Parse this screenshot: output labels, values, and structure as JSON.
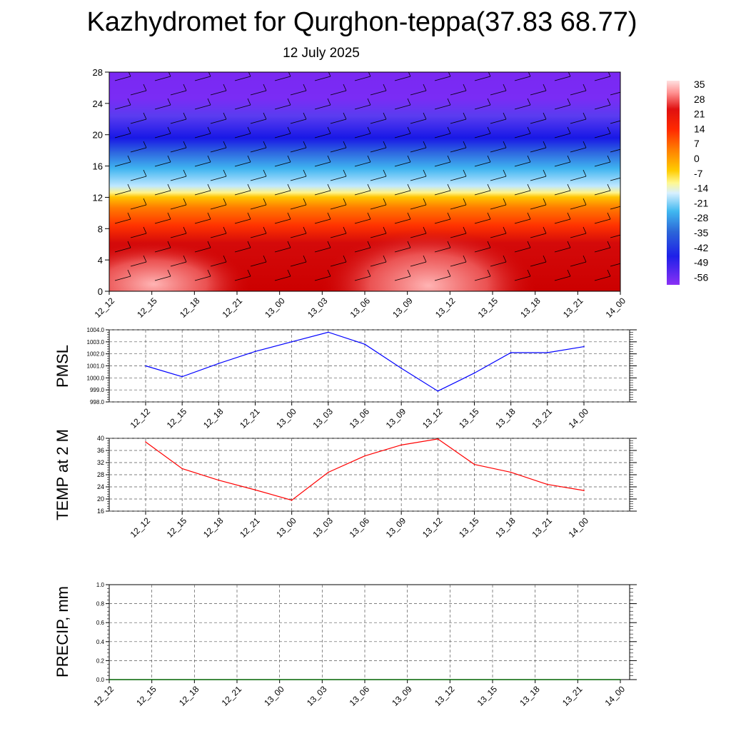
{
  "title": "Kazhydromet for Qurghon-teppa(37.83 68.77)",
  "subtitle": "12 July 2025",
  "time_labels": [
    "12_12",
    "12_15",
    "12_18",
    "12_21",
    "13_00",
    "13_03",
    "13_06",
    "13_09",
    "13_12",
    "13_15",
    "13_18",
    "13_21",
    "14_00"
  ],
  "colorbar": {
    "labels": [
      "35",
      "28",
      "21",
      "14",
      "7",
      "0",
      "-7",
      "-14",
      "-21",
      "-28",
      "-35",
      "-42",
      "-49",
      "-56"
    ]
  },
  "chart_data": [
    {
      "type": "heatmap",
      "name": "cross-section",
      "xlabel": "",
      "ylabel": "",
      "ylim": [
        0,
        28
      ],
      "yticks": [
        0,
        4,
        8,
        12,
        16,
        20,
        24,
        28
      ],
      "categories": [
        "12_12",
        "12_15",
        "12_18",
        "12_21",
        "13_00",
        "13_03",
        "13_06",
        "13_09",
        "13_12",
        "13_15",
        "13_18",
        "13_21",
        "14_00"
      ],
      "values_by_level": [
        {
          "level": 0,
          "temps": [
            35,
            33,
            31,
            27,
            27,
            26,
            30,
            33,
            34,
            32,
            29,
            27,
            27
          ]
        },
        {
          "level": 4,
          "temps": [
            28,
            28,
            27,
            27,
            26,
            26,
            27,
            28,
            29,
            28,
            27,
            26,
            26
          ]
        },
        {
          "level": 8,
          "temps": [
            21,
            21,
            21,
            21,
            21,
            21,
            21,
            21,
            21,
            21,
            21,
            21,
            21
          ]
        },
        {
          "level": 12,
          "temps": [
            0,
            0,
            0,
            0,
            0,
            0,
            0,
            0,
            0,
            0,
            0,
            0,
            0
          ]
        },
        {
          "level": 16,
          "temps": [
            -21,
            -21,
            -21,
            -21,
            -21,
            -21,
            -21,
            -21,
            -21,
            -21,
            -21,
            -21,
            -21
          ]
        },
        {
          "level": 20,
          "temps": [
            -42,
            -42,
            -42,
            -42,
            -42,
            -42,
            -42,
            -42,
            -42,
            -42,
            -42,
            -42,
            -42
          ]
        },
        {
          "level": 24,
          "temps": [
            -56,
            -56,
            -56,
            -56,
            -56,
            -56,
            -56,
            -56,
            -56,
            -56,
            -56,
            -56,
            -56
          ]
        },
        {
          "level": 28,
          "temps": [
            -60,
            -60,
            -60,
            -60,
            -60,
            -60,
            -60,
            -60,
            -60,
            -60,
            -60,
            -60,
            -60
          ]
        }
      ]
    },
    {
      "type": "line",
      "name": "pmsl",
      "ylabel": "PMSL",
      "ylim": [
        998.0,
        1004.0
      ],
      "yticks": [
        "998.0",
        "999.0",
        "1000.0",
        "1001.0",
        "1002.0",
        "1003.0",
        "1004.0"
      ],
      "color": "#0000ff",
      "categories": [
        "12_12",
        "12_15",
        "12_18",
        "12_21",
        "13_00",
        "13_03",
        "13_06",
        "13_09",
        "13_12",
        "13_15",
        "13_18",
        "13_21",
        "14_00"
      ],
      "values": [
        1001.0,
        1000.1,
        1001.2,
        1002.2,
        1003.0,
        1003.8,
        1002.8,
        1000.8,
        998.9,
        1000.4,
        1002.1,
        1002.1,
        1002.6
      ]
    },
    {
      "type": "line",
      "name": "temp2m",
      "ylabel": "TEMP at 2 M",
      "ylim": [
        16,
        40
      ],
      "yticks": [
        "16",
        "20",
        "24",
        "28",
        "32",
        "36",
        "40"
      ],
      "color": "#ff0000",
      "categories": [
        "12_12",
        "12_15",
        "12_18",
        "12_21",
        "13_00",
        "13_03",
        "13_06",
        "13_09",
        "13_12",
        "13_15",
        "13_18",
        "13_21",
        "14_00"
      ],
      "values": [
        38.8,
        30.0,
        26.2,
        23.0,
        19.6,
        28.8,
        34.2,
        37.8,
        39.8,
        31.4,
        28.8,
        24.8,
        22.8
      ]
    },
    {
      "type": "line",
      "name": "precip",
      "ylabel": "PRECIP, mm",
      "ylim": [
        0.0,
        1.0
      ],
      "yticks": [
        "0.0",
        "0.2",
        "0.4",
        "0.6",
        "0.8",
        "1.0"
      ],
      "color": "#006400",
      "categories": [
        "12_12",
        "12_15",
        "12_18",
        "12_21",
        "13_00",
        "13_03",
        "13_06",
        "13_09",
        "13_12",
        "13_15",
        "13_18",
        "13_21",
        "14_00"
      ],
      "values": [
        0,
        0,
        0,
        0,
        0,
        0,
        0,
        0,
        0,
        0,
        0,
        0,
        0
      ]
    }
  ]
}
